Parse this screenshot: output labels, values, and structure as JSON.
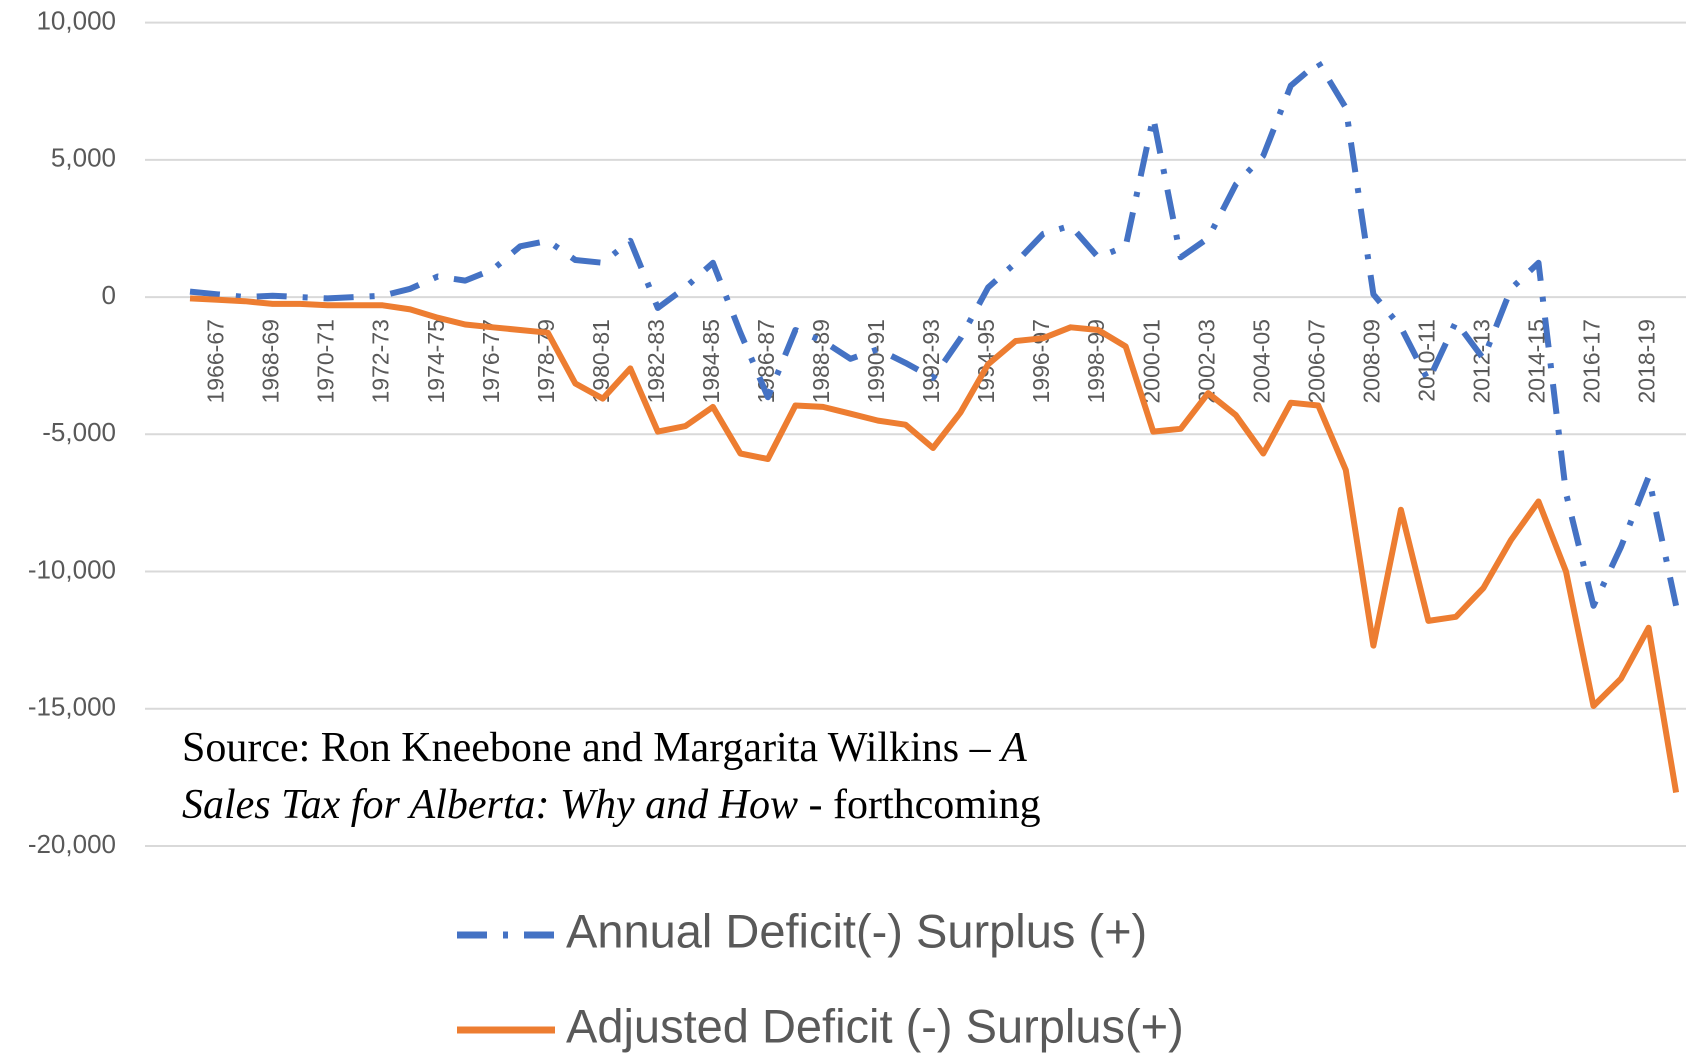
{
  "chart_data": {
    "type": "line",
    "categories": [
      null,
      "1966-67",
      null,
      "1968-69",
      null,
      "1970-71",
      null,
      "1972-73",
      null,
      "1974-75",
      null,
      "1976-77",
      null,
      "1978-79",
      null,
      "1980-81",
      null,
      "1982-83",
      null,
      "1984-85",
      null,
      "1986-87",
      null,
      "1988-89",
      null,
      "1990-91",
      null,
      "1992-93",
      null,
      "1994-95",
      null,
      "1996-97",
      null,
      "1998-99",
      null,
      "2000-01",
      null,
      "2002-03",
      null,
      "2004-05",
      null,
      "2006-07",
      null,
      "2008-09",
      null,
      "2010-11",
      null,
      "2012-13",
      null,
      "2014-15",
      null,
      "2016-17",
      null,
      "2018-19",
      null
    ],
    "series": [
      {
        "name": "Annual Deficit(-) Surplus (+)",
        "color": "#4472c4",
        "line_style": "dash-dot",
        "values": [
          200,
          100,
          0,
          50,
          0,
          -50,
          0,
          50,
          300,
          750,
          600,
          1000,
          1850,
          2050,
          1350,
          1250,
          2050,
          -400,
          350,
          1250,
          -1300,
          -3650,
          -1200,
          -1600,
          -2250,
          -1900,
          -2400,
          -2950,
          -1500,
          350,
          1250,
          2300,
          2600,
          1450,
          1850,
          6550,
          1450,
          2150,
          4100,
          5150,
          7700,
          8550,
          6900,
          100,
          -1100,
          -3050,
          -900,
          -2250,
          300,
          1250,
          -7150,
          -11250,
          -9100,
          -6550,
          -11250
        ]
      },
      {
        "name": "Adjusted Deficit (-) Surplus(+)",
        "color": "#ed7d31",
        "line_style": "solid",
        "values": [
          -50,
          -100,
          -150,
          -250,
          -250,
          -300,
          -300,
          -300,
          -450,
          -750,
          -1000,
          -1100,
          -1200,
          -1300,
          -3150,
          -3700,
          -2600,
          -4900,
          -4700,
          -4000,
          -5700,
          -5900,
          -3950,
          -4000,
          -4250,
          -4500,
          -4650,
          -5500,
          -4200,
          -2450,
          -1600,
          -1500,
          -1100,
          -1200,
          -1800,
          -4900,
          -4800,
          -3500,
          -4300,
          -5700,
          -3850,
          -3950,
          -6300,
          -12700,
          -7750,
          -11800,
          -11650,
          -10600,
          -8850,
          -7450,
          -10000,
          -14900,
          -13900,
          -12050,
          -18050
        ]
      }
    ],
    "ylim": [
      -20000,
      10000
    ],
    "yticks": [
      {
        "value": -20000,
        "label": "-20,000"
      },
      {
        "value": -15000,
        "label": "-15,000"
      },
      {
        "value": -10000,
        "label": "-10,000"
      },
      {
        "value": -5000,
        "label": "-5,000"
      },
      0,
      {
        "value": 5000,
        "label": "5,000"
      },
      {
        "value": 10000,
        "label": "10,000"
      }
    ],
    "grid": true,
    "legend": "bottom",
    "annotation": [
      "Source: Ron Kneebone and Margarita Wilkins – ",
      "A Sales Tax for Alberta: Why and How",
      " - forthcoming"
    ]
  }
}
